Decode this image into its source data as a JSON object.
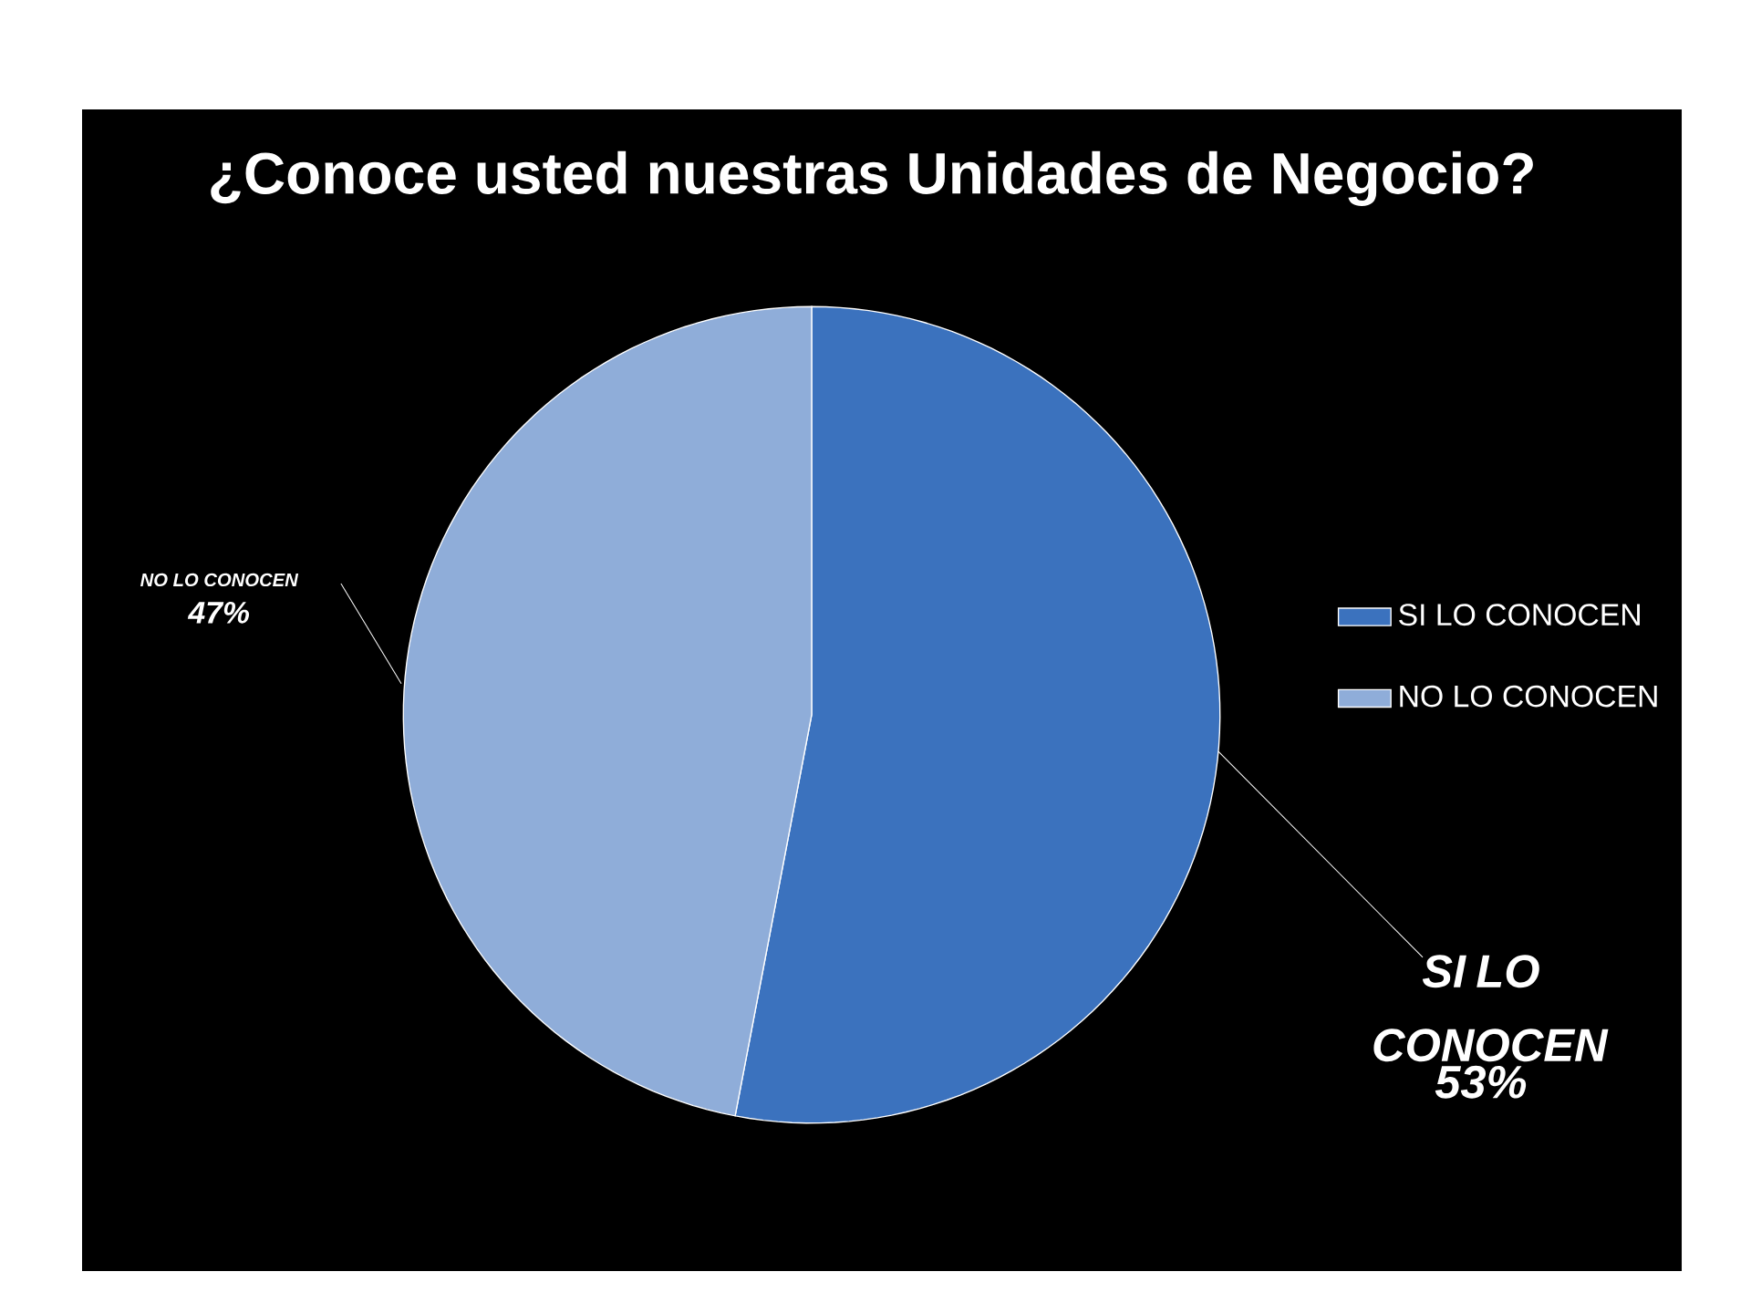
{
  "chart_data": {
    "type": "pie",
    "title": "¿Conoce usted nuestras Unidades de Negocio?",
    "categories": [
      "SI LO CONOCEN",
      "NO LO CONOCEN"
    ],
    "values": [
      53,
      47
    ],
    "colors": [
      "#3b72be",
      "#8fadd9"
    ],
    "value_labels": [
      "53%",
      "47%"
    ],
    "legend": "right"
  }
}
